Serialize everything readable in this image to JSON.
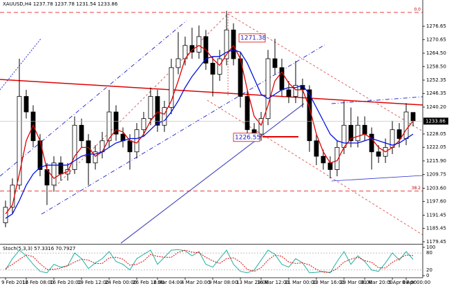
{
  "chart_data": {
    "type": "candlestick",
    "title": "XAUUSD,H4  1237.78 1237.78 1231.54 1233.86",
    "categories": [
      "9 Feb 2016",
      null,
      null,
      "12 Feb 08:00",
      null,
      null,
      null,
      "16 Feb 20:00",
      null,
      null,
      null,
      "19 Feb 12:00",
      null,
      null,
      null,
      "24 Feb 00:00",
      null,
      null,
      null,
      "26 Feb 16:00",
      null,
      null,
      "2 Mar 04:00",
      null,
      null,
      null,
      "4 Mar 20:00",
      null,
      null,
      null,
      "9 Mar 08:00",
      null,
      null,
      null,
      "13 Mar 23:00",
      null,
      null,
      "16 Mar 12:00",
      null,
      null,
      null,
      "21 Mar 00:00",
      null,
      null,
      null,
      "23 Mar 16:00",
      null,
      null,
      null,
      "29 Mar 08:00",
      null,
      null,
      "31 Mar 20:00",
      null,
      null,
      null,
      "5 Apr 08:00",
      null,
      "8 Apr 00:00",
      null
    ],
    "open": [
      1188,
      1195,
      1205,
      1245,
      1238,
      1225,
      1212,
      1205,
      1215,
      1210,
      1212,
      1232,
      1225,
      1215,
      1220,
      1225,
      1238,
      1228,
      1225,
      1220,
      1230,
      1235,
      1245,
      1232,
      1240,
      1258,
      1262,
      1268,
      1265,
      1272,
      1260,
      1255,
      1262,
      1275,
      1262,
      1245,
      1230,
      1228,
      1235,
      1262,
      1258,
      1248,
      1245,
      1250,
      1248,
      1225,
      1218,
      1215,
      1212,
      1222,
      1232,
      1225,
      1232,
      1228,
      1220,
      1218,
      1222,
      1230,
      1226,
      1237.78
    ],
    "high": [
      1198,
      1208,
      1262,
      1248,
      1241,
      1228,
      1215,
      1218,
      1218,
      1215,
      1236,
      1235,
      1228,
      1223,
      1229,
      1248,
      1241,
      1231,
      1228,
      1233,
      1238,
      1249,
      1248,
      1243,
      1262,
      1274,
      1272,
      1276,
      1277,
      1275,
      1263,
      1266,
      1283.6,
      1278,
      1265,
      1248,
      1233,
      1238,
      1266,
      1271,
      1262,
      1252,
      1261,
      1253,
      1250,
      1228,
      1221,
      1218,
      1225,
      1243,
      1240,
      1236,
      1236,
      1231,
      1223,
      1226,
      1234,
      1233,
      1242,
      1237.78
    ],
    "low": [
      1186,
      1192,
      1203,
      1235,
      1222,
      1209,
      1196,
      1202,
      1207,
      1207,
      1210,
      1222,
      1205,
      1212,
      1217,
      1222,
      1225,
      1222,
      1212,
      1217,
      1227,
      1232,
      1229,
      1229,
      1237,
      1255,
      1259,
      1262,
      1262,
      1257,
      1245,
      1252,
      1259,
      1259,
      1240,
      1226,
      1225,
      1225,
      1232,
      1255,
      1245,
      1242,
      1242,
      1240,
      1220,
      1214,
      1212,
      1208,
      1209,
      1219,
      1222,
      1222,
      1225,
      1212,
      1215,
      1215,
      1219,
      1222,
      1223,
      1231.54
    ],
    "close": [
      1195,
      1205,
      1245,
      1238,
      1225,
      1212,
      1205,
      1215,
      1210,
      1212,
      1232,
      1225,
      1215,
      1220,
      1225,
      1238,
      1228,
      1225,
      1220,
      1230,
      1235,
      1245,
      1232,
      1240,
      1258,
      1262,
      1268,
      1265,
      1272,
      1260,
      1255,
      1262,
      1275,
      1262,
      1245,
      1230,
      1228,
      1235,
      1262,
      1258,
      1248,
      1245,
      1250,
      1248,
      1225,
      1218,
      1215,
      1212,
      1222,
      1232,
      1225,
      1232,
      1228,
      1220,
      1218,
      1222,
      1230,
      1226,
      1238,
      1233.86
    ],
    "series": [
      {
        "color": "#e00000",
        "values": [
          1192,
          1196,
          1210,
          1225,
          1232,
          1225,
          1212,
          1208,
          1210,
          1211,
          1218,
          1222,
          1222,
          1218,
          1220,
          1226,
          1230,
          1229,
          1225,
          1224,
          1228,
          1234,
          1238,
          1237,
          1243,
          1252,
          1262,
          1266,
          1268,
          1266,
          1262,
          1259,
          1264,
          1268,
          1262,
          1248,
          1236,
          1232,
          1241,
          1252,
          1256,
          1251,
          1248,
          1248,
          1240,
          1228,
          1220,
          1215,
          1216,
          1222,
          1226,
          1227,
          1228,
          1226,
          1222,
          1220,
          1222,
          1225,
          1230,
          1234
        ]
      },
      {
        "color": "#0010e0",
        "values": [
          1190,
          1192,
          1198,
          1205,
          1210,
          1213,
          1214,
          1214,
          1214,
          1214,
          1216,
          1218,
          1219,
          1219,
          1220,
          1222,
          1224,
          1225,
          1226,
          1226,
          1227,
          1230,
          1233,
          1234,
          1238,
          1243,
          1249,
          1254,
          1258,
          1262,
          1263,
          1263,
          1265,
          1266,
          1265,
          1260,
          1253,
          1246,
          1244,
          1246,
          1248,
          1249,
          1249,
          1250,
          1246,
          1240,
          1234,
          1228,
          1225,
          1224,
          1224,
          1224,
          1225,
          1226,
          1225,
          1224,
          1223,
          1224,
          1226,
          1228
        ]
      }
    ],
    "ylim": [
      1178.8,
      1288.5
    ],
    "yticks": [
      {
        "value": 1276.65,
        "label": "1276.65"
      },
      {
        "value": 1270.65,
        "label": "1270.65"
      },
      {
        "value": 1264.5,
        "label": "1264.50"
      },
      {
        "value": 1258.5,
        "label": "1258.50"
      },
      {
        "value": 1252.35,
        "label": "1252.35"
      },
      {
        "value": 1246.35,
        "label": "1246.35"
      },
      {
        "value": 1240.2,
        "label": "1240.20"
      },
      {
        "value": 1228.05,
        "label": "1228.05"
      },
      {
        "value": 1222.05,
        "label": "1222.05"
      },
      {
        "value": 1215.9,
        "label": "1215.90"
      },
      {
        "value": 1209.75,
        "label": "1209.75"
      },
      {
        "value": 1203.6,
        "label": "1203.60"
      },
      {
        "value": 1197.6,
        "label": "1197.60"
      },
      {
        "value": 1191.45,
        "label": "1191.45"
      },
      {
        "value": 1185.45,
        "label": "1185.45"
      },
      {
        "value": 1179.45,
        "label": "1179.45"
      }
    ],
    "last_price": 1233.86,
    "price_labels": [
      1271.38,
      1226.55
    ],
    "fib_levels": [
      {
        "value": 1282.9,
        "label": "0.0"
      },
      {
        "value": 1202.3,
        "label": "38.2"
      }
    ],
    "indicator": {
      "type": "line",
      "title": "Stoch(5,3,3) 57.3316 70.7927",
      "ylim": [
        0,
        100
      ],
      "yticks": [
        100,
        80,
        20,
        0
      ],
      "series": [
        {
          "color": "#20b0a0",
          "values": [
            20,
            60,
            90,
            70,
            40,
            15,
            10,
            40,
            30,
            35,
            80,
            60,
            25,
            45,
            60,
            85,
            50,
            40,
            20,
            60,
            75,
            90,
            40,
            65,
            90,
            92,
            88,
            70,
            85,
            40,
            30,
            60,
            90,
            40,
            15,
            10,
            20,
            55,
            90,
            75,
            40,
            30,
            60,
            45,
            10,
            12,
            15,
            10,
            50,
            85,
            40,
            70,
            50,
            20,
            15,
            45,
            80,
            55,
            85,
            57.3316
          ]
        },
        {
          "color": "#e00000",
          "values": [
            25,
            40,
            57,
            73,
            67,
            42,
            22,
            22,
            27,
            35,
            48,
            58,
            55,
            43,
            43,
            63,
            65,
            58,
            37,
            40,
            52,
            75,
            68,
            65,
            65,
            82,
            90,
            83,
            81,
            65,
            52,
            43,
            60,
            63,
            48,
            22,
            15,
            28,
            55,
            73,
            68,
            48,
            43,
            45,
            38,
            22,
            12,
            12,
            25,
            48,
            58,
            65,
            53,
            47,
            28,
            27,
            47,
            60,
            73,
            70.7927
          ]
        }
      ]
    }
  }
}
